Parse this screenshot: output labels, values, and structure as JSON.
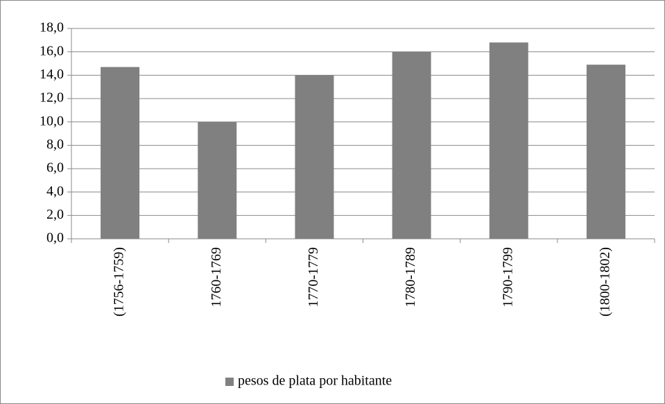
{
  "chart_data": {
    "type": "bar",
    "categories": [
      "(1756-1759)",
      "1760-1769",
      "1770-1779",
      "1780-1789",
      "1790-1799",
      "(1800-1802)"
    ],
    "series": [
      {
        "name": "pesos de plata por habitante",
        "color": "#808080",
        "values": [
          14.7,
          10.0,
          14.0,
          16.0,
          16.8,
          14.9
        ]
      }
    ],
    "ylim": [
      0,
      18
    ],
    "yticks": [
      {
        "value": 0,
        "label": "0,0"
      },
      {
        "value": 2,
        "label": "2,0"
      },
      {
        "value": 4,
        "label": "4,0"
      },
      {
        "value": 6,
        "label": "6,0"
      },
      {
        "value": 8,
        "label": "8,0"
      },
      {
        "value": 10,
        "label": "10,0"
      },
      {
        "value": 12,
        "label": "12,0"
      },
      {
        "value": 14,
        "label": "14,0"
      },
      {
        "value": 16,
        "label": "16,0"
      },
      {
        "value": 18,
        "label": "18,0"
      }
    ],
    "grid": true,
    "legend": "bottom"
  }
}
